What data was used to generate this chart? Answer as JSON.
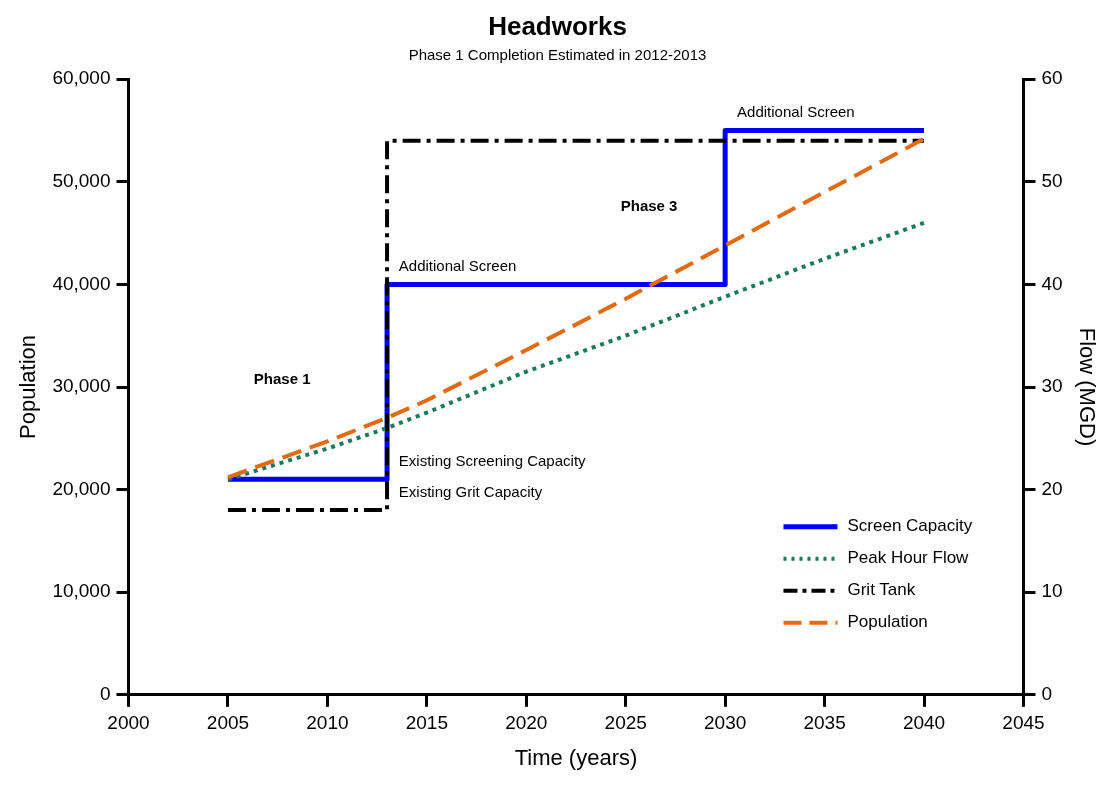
{
  "chart_data": {
    "type": "line",
    "title": "Headworks",
    "subtitle": "Phase 1 Completion Estimated in 2012-2013",
    "xlabel": "Time (years)",
    "ylabel": "Population",
    "y2label": "Flow (MGD)",
    "xlim": [
      2000,
      2045
    ],
    "xticks": [
      2000,
      2005,
      2010,
      2015,
      2020,
      2025,
      2030,
      2035,
      2040,
      2045
    ],
    "ylim": [
      0,
      60000
    ],
    "yticks": [
      {
        "value": 0,
        "label": "0"
      },
      {
        "value": 10000,
        "label": "10,000"
      },
      {
        "value": 20000,
        "label": "20,000"
      },
      {
        "value": 30000,
        "label": "30,000"
      },
      {
        "value": 40000,
        "label": "40,000"
      },
      {
        "value": 50000,
        "label": "50,000"
      },
      {
        "value": 60000,
        "label": "60,000"
      }
    ],
    "y2lim": [
      0,
      60
    ],
    "y2ticks": [
      0,
      10,
      20,
      30,
      40,
      50,
      60
    ],
    "grid": false,
    "legend": "bottom right",
    "marker": "none",
    "series": [
      {
        "name": "Screen Capacity",
        "color": "#0000ff",
        "axis": "y2",
        "line_style": "solid",
        "x": [
          2005,
          2013,
          2013,
          2030,
          2030,
          2040
        ],
        "values": [
          21,
          21,
          40,
          40,
          55,
          55
        ]
      },
      {
        "name": "Peak Hour Flow",
        "color": "#1a7a5e",
        "axis": "y2",
        "line_style": "dotted",
        "x": [
          2005,
          2010,
          2013,
          2015,
          2020,
          2025,
          2030,
          2035,
          2040
        ],
        "values": [
          21,
          24,
          26,
          27.5,
          31.5,
          35,
          38.8,
          42.5,
          46
        ]
      },
      {
        "name": "Grit Tank",
        "color": "#000000",
        "axis": "y2",
        "line_style": "dashdot",
        "x": [
          2005,
          2013,
          2013,
          2040
        ],
        "values": [
          18,
          18,
          54,
          54
        ]
      },
      {
        "name": "Population",
        "color": "#e26a12",
        "line_style": "dashed",
        "x": [
          2005,
          2010,
          2013,
          2015,
          2020,
          2025,
          2030,
          2035,
          2040
        ],
        "values": [
          21200,
          24700,
          27000,
          28700,
          33600,
          38600,
          43800,
          49000,
          54200
        ]
      }
    ],
    "annotations": [
      "Additional Screen",
      "Existing Screening Capacity",
      "Existing Grit Capacity",
      "Additional Screen",
      "Phase 1",
      "Phase 3"
    ]
  }
}
